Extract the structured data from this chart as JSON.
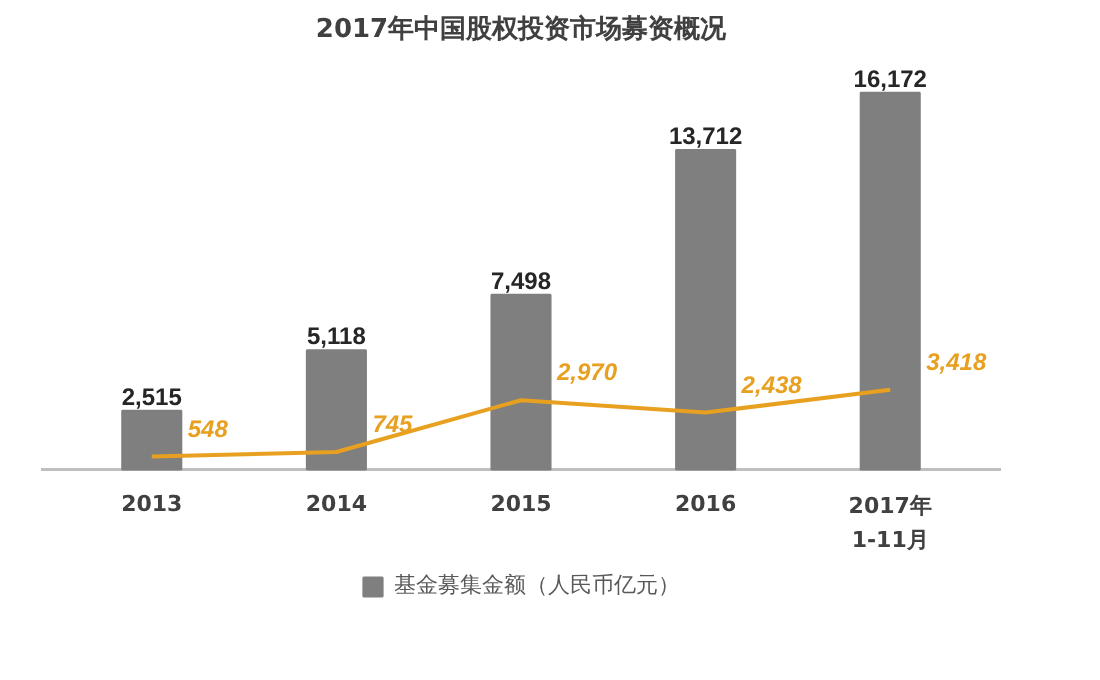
{
  "chart_data": {
    "type": "bar",
    "title": "2017年中国股权投资市场募资概况",
    "categories": [
      "2013",
      "2014",
      "2015",
      "2016",
      "2017年\n1-11月"
    ],
    "series": [
      {
        "name": "基金募集金额（人民币亿元）",
        "color": "#7f7f7f",
        "values": [
          2515,
          5118,
          7498,
          13712,
          16172
        ],
        "value_labels": [
          "2,515",
          "5,118",
          "7,498",
          "13,712",
          "16,172"
        ]
      },
      {
        "type": "line",
        "color": "#e8a020",
        "values": [
          548,
          745,
          2970,
          2438,
          3418
        ],
        "value_labels": [
          "548",
          "745",
          "2,970",
          "2,438",
          "3,418"
        ]
      }
    ],
    "legend": "bottom"
  }
}
